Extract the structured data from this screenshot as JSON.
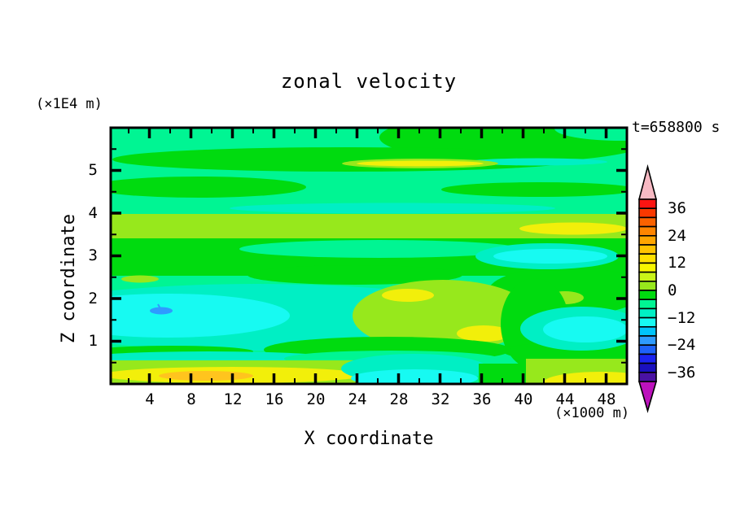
{
  "title": "zonal velocity",
  "top_left_units": "(×1E4 m)",
  "time_stamp": "t=658800 s",
  "x_axis": {
    "label": "X coordinate",
    "units": "(×1000 m)",
    "ticks": [
      "4",
      "8",
      "12",
      "16",
      "20",
      "24",
      "28",
      "32",
      "36",
      "40",
      "44",
      "48"
    ]
  },
  "z_axis": {
    "label": "Z coordinate",
    "ticks": [
      "5",
      "4",
      "3",
      "2",
      "1"
    ]
  },
  "colorbar": {
    "tick_labels": [
      "36",
      "24",
      "12",
      "0",
      "−12",
      "−24",
      "−36"
    ],
    "segment_colors": [
      "#FB1412",
      "#F93800",
      "#FB6200",
      "#FF8500",
      "#FFA500",
      "#FFC300",
      "#FFE000",
      "#F8F600",
      "#C9F318",
      "#97E81C",
      "#00DB0F",
      "#00F593",
      "#00EFC4",
      "#17FAF2",
      "#00C4FA",
      "#2E9BFF",
      "#1E62FA",
      "#1B23F0",
      "#1A10BE",
      "#4A12A3"
    ]
  },
  "palette": {
    "spring": "#00F593",
    "green": "#00DB0F",
    "chartreuse": "#97E81C",
    "yellow": "#F2EF0A",
    "amber": "#FFC41E",
    "turquoise": "#00EFC4",
    "cyan": "#17FAF2",
    "blue": "#2E9BFF",
    "cb_top": "#F7B9C3",
    "cb_bottom": "#BC12BC"
  },
  "chart_data": {
    "type": "filled-contour",
    "title": "zonal velocity",
    "time_annotation": "t=658800 s",
    "xlabel": "X coordinate",
    "x_units": "×1000 m",
    "ylabel": "Z coordinate",
    "y_units": "×1E4 m",
    "x_range": [
      0,
      50
    ],
    "z_range": [
      0,
      6
    ],
    "x_major_ticks": [
      4,
      8,
      12,
      16,
      20,
      24,
      28,
      32,
      36,
      40,
      44,
      48
    ],
    "x_minor_tick_step": 2,
    "z_major_ticks": [
      1,
      2,
      3,
      4,
      5
    ],
    "z_minor_tick_step": 0.5,
    "contour_interval": 4,
    "colorbar_tick_values": [
      36,
      24,
      12,
      0,
      -12,
      -24,
      -36
    ],
    "colorbar_level_range": [
      -40,
      40
    ],
    "displayed_value_range_estimate": [
      -24,
      24
    ],
    "grid": false,
    "legend_position": "right-colorbar",
    "features": [
      {
        "description": "background field of alternating horizontal green / spring-green bands",
        "value": "-4 to +4"
      },
      {
        "description": "vivid green band along top edge",
        "x": "14-50",
        "z": "5.4-6.0",
        "value": "0 to +4"
      },
      {
        "description": "full-width chartreuse band with small yellow lens at right",
        "x": "0-50",
        "z": "3.4-3.9",
        "value": "+4 to +12"
      },
      {
        "description": "cyan/turquoise minimum blob, lower left",
        "x": "0-17",
        "z": "1.0-2.3",
        "value": "-8 to -12"
      },
      {
        "description": "small sky-blue spot inside cyan blob",
        "x": "4.2-5.8",
        "z": "1.7-1.8",
        "value": "about -20"
      },
      {
        "description": "chartreuse maximum blob with two yellow cores, bottom center",
        "x": "24-41",
        "z": "0.8-2.4",
        "value": "+8 to +16"
      },
      {
        "description": "turquoise/cyan patch, right side mid-level",
        "x": "36-49",
        "z": "2.7-3.3",
        "value": "-8 to -12"
      },
      {
        "description": "turquoise/cyan patch, right side low-level",
        "x": "40-50",
        "z": "0.8-1.8",
        "value": "-8 to -12"
      },
      {
        "description": "bottom strip: yellow band with amber core on left",
        "x": "0-25",
        "z": "0.0-0.45",
        "value": "+12 to +22"
      },
      {
        "description": "bottom strip: cyan segment in middle",
        "x": "23-36",
        "z": "0.0-0.45",
        "value": "-8 to -12"
      },
      {
        "description": "bottom strip: chartreuse with yellow corner at right",
        "x": "40-50",
        "z": "0.0-0.6",
        "value": "+8 to +16"
      }
    ]
  }
}
